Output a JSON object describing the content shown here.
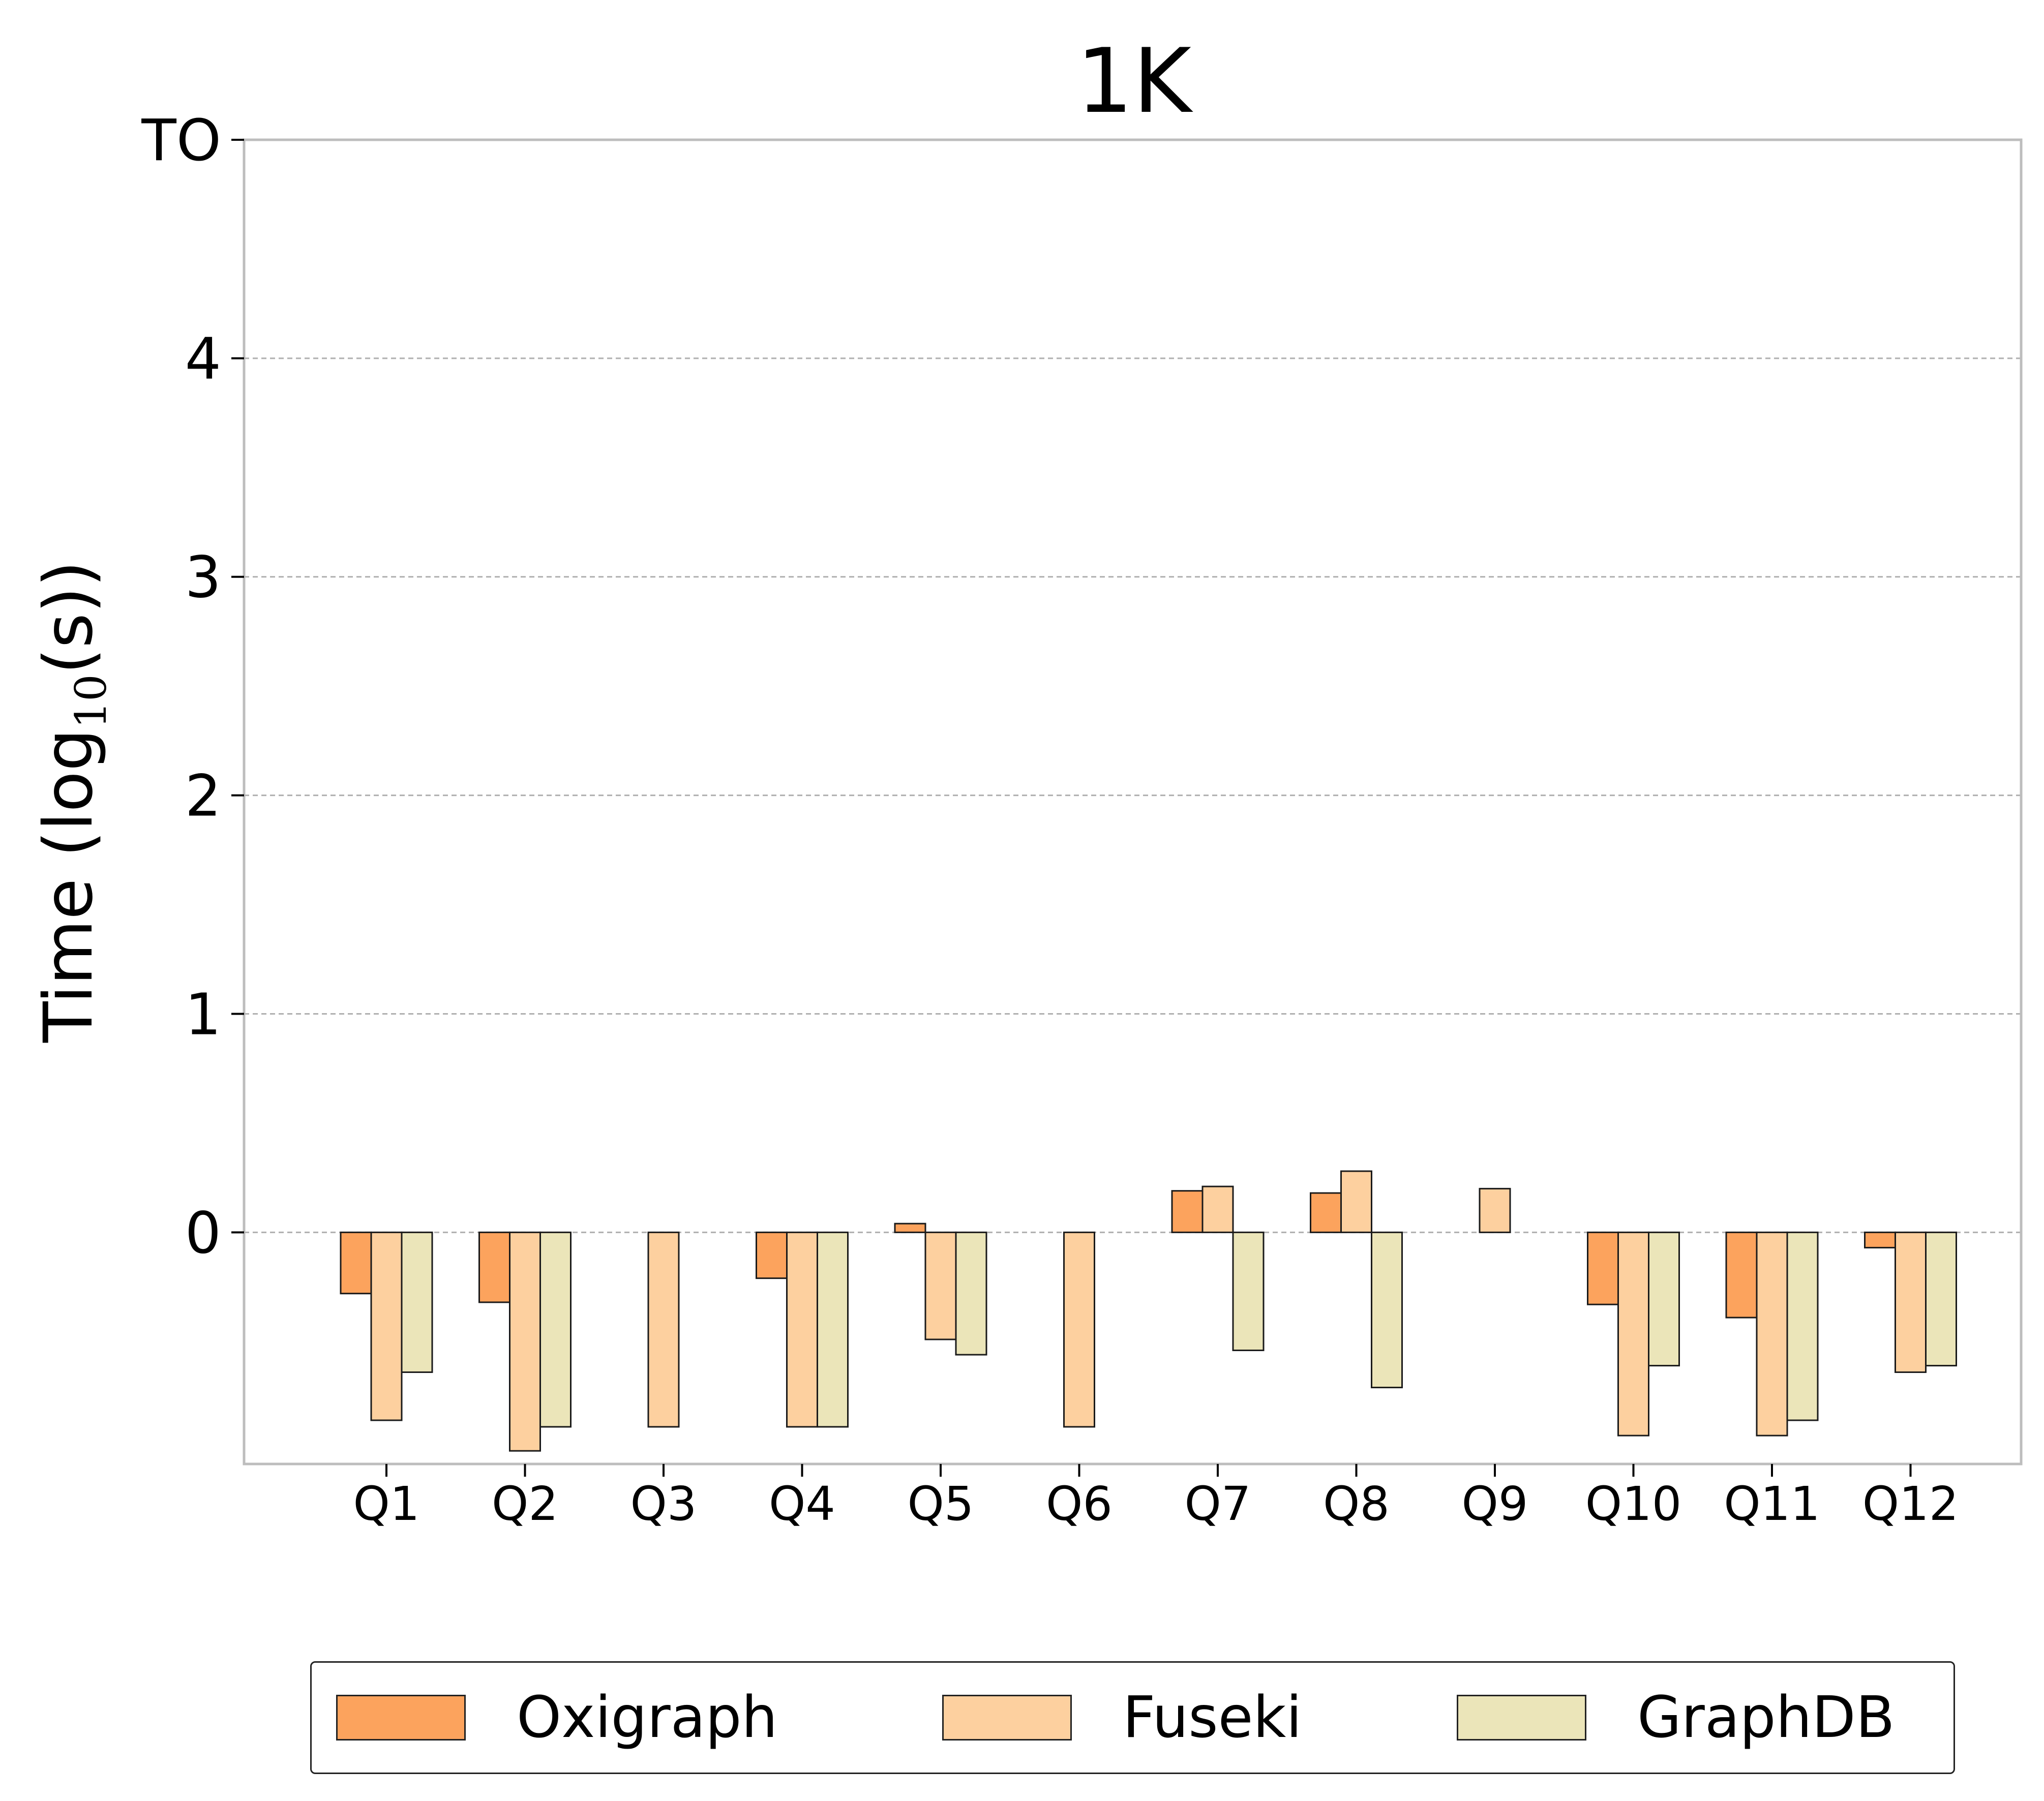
{
  "chart_data": {
    "type": "bar",
    "title": "1K",
    "ylabel": {
      "prefix": "Time (log",
      "subscript": "10",
      "suffix": "(s))"
    },
    "xlabel": "",
    "categories": [
      "Q1",
      "Q2",
      "Q3",
      "Q4",
      "Q5",
      "Q6",
      "Q7",
      "Q8",
      "Q9",
      "Q10",
      "Q11",
      "Q12"
    ],
    "ylim": [
      -1.06,
      5.0
    ],
    "yticks": [
      {
        "value": 0,
        "label": "0"
      },
      {
        "value": 1,
        "label": "1"
      },
      {
        "value": 2,
        "label": "2"
      },
      {
        "value": 3,
        "label": "3"
      },
      {
        "value": 4,
        "label": "4"
      },
      {
        "value": 5,
        "label": "TO"
      }
    ],
    "grid": "horizontal dashed",
    "legend_placement": "bottom-center",
    "series": [
      {
        "name": "Oxigraph",
        "color": "#FCA35D",
        "values": [
          -0.28,
          -0.32,
          null,
          -0.21,
          0.04,
          null,
          0.19,
          0.18,
          null,
          -0.33,
          -0.39,
          -0.07
        ]
      },
      {
        "name": "Fuseki",
        "color": "#FDD09F",
        "values": [
          -0.86,
          -1.0,
          -0.89,
          -0.89,
          -0.49,
          -0.89,
          0.21,
          0.28,
          0.2,
          -0.93,
          -0.93,
          -0.64
        ]
      },
      {
        "name": "GraphDB",
        "color": "#EBE5B9",
        "values": [
          -0.64,
          -0.89,
          null,
          -0.89,
          -0.56,
          null,
          -0.54,
          -0.71,
          null,
          -0.61,
          -0.86,
          -0.61
        ]
      }
    ]
  }
}
